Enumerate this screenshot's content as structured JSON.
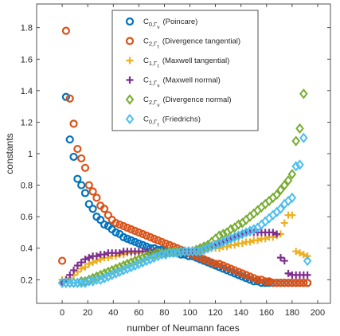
{
  "chart_data": {
    "type": "scatter",
    "xlabel": "number of Neumann faces",
    "ylabel": "constants",
    "xlim": [
      -20,
      210
    ],
    "ylim": [
      0.05,
      1.95
    ],
    "xticks": [
      "0",
      "20",
      "40",
      "60",
      "80",
      "100",
      "120",
      "140",
      "160",
      "180",
      "200"
    ],
    "yticks": [
      "0.2",
      "0.4",
      "0.6",
      "0.8",
      "1",
      "1.2",
      "1.4",
      "1.6",
      "1.8"
    ],
    "grid": false,
    "legend_position": "top-center",
    "series": [
      {
        "label_main": "C",
        "label_sub": "0,Γ",
        "label_subsub": "ν",
        "label_text": "(Poincare)",
        "marker": "circle",
        "color": "#0072bd",
        "x": [
          3,
          6,
          9,
          12,
          15,
          18,
          21,
          24,
          27,
          30,
          33,
          36,
          39,
          42,
          45,
          48,
          51,
          54,
          57,
          60,
          63,
          66,
          69,
          72,
          75,
          78,
          81,
          84,
          87,
          90,
          93,
          96,
          99,
          102,
          105,
          108,
          111,
          114,
          117,
          120,
          123,
          126,
          129,
          132,
          135,
          138,
          141,
          144,
          147,
          150,
          153,
          156,
          159,
          162,
          165,
          168,
          171,
          174,
          177,
          180,
          183,
          186,
          189,
          192
        ],
        "y": [
          1.36,
          1.09,
          0.98,
          0.84,
          0.8,
          0.75,
          0.68,
          0.65,
          0.6,
          0.58,
          0.55,
          0.54,
          0.52,
          0.5,
          0.49,
          0.47,
          0.46,
          0.45,
          0.44,
          0.43,
          0.42,
          0.41,
          0.4,
          0.4,
          0.39,
          0.39,
          0.38,
          0.37,
          0.37,
          0.37,
          0.36,
          0.36,
          0.35,
          0.35,
          0.34,
          0.33,
          0.32,
          0.31,
          0.3,
          0.29,
          0.28,
          0.27,
          0.26,
          0.25,
          0.24,
          0.23,
          0.22,
          0.21,
          0.2,
          0.19,
          0.19,
          0.18,
          0.18,
          0.18,
          0.18,
          0.18,
          0.18,
          0.18,
          0.18,
          0.18,
          0.18,
          0.18,
          0.18,
          0.18
        ]
      },
      {
        "label_main": "C",
        "label_sub": "2,Γ",
        "label_subsub": "τ",
        "label_text": "(Divergence tangential)",
        "marker": "circle",
        "color": "#d95319",
        "x": [
          0,
          3,
          6,
          9,
          12,
          15,
          18,
          21,
          24,
          27,
          30,
          33,
          36,
          39,
          42,
          45,
          48,
          51,
          54,
          57,
          60,
          63,
          66,
          69,
          72,
          75,
          78,
          81,
          84,
          87,
          90,
          93,
          96,
          99,
          102,
          105,
          108,
          111,
          114,
          117,
          120,
          123,
          126,
          129,
          132,
          135,
          138,
          141,
          144,
          147,
          150,
          153,
          156,
          159,
          162,
          165,
          168,
          171,
          174,
          177,
          180,
          183,
          186,
          189,
          192
        ],
        "y": [
          0.32,
          1.78,
          1.35,
          1.19,
          1.03,
          0.97,
          0.91,
          0.8,
          0.76,
          0.72,
          0.67,
          0.65,
          0.61,
          0.58,
          0.56,
          0.55,
          0.54,
          0.53,
          0.52,
          0.51,
          0.5,
          0.49,
          0.48,
          0.47,
          0.46,
          0.45,
          0.44,
          0.43,
          0.42,
          0.41,
          0.4,
          0.39,
          0.38,
          0.37,
          0.36,
          0.35,
          0.34,
          0.33,
          0.32,
          0.31,
          0.3,
          0.3,
          0.29,
          0.28,
          0.27,
          0.26,
          0.25,
          0.24,
          0.23,
          0.22,
          0.21,
          0.2,
          0.2,
          0.19,
          0.19,
          0.18,
          0.18,
          0.18,
          0.18,
          0.18,
          0.18,
          0.18,
          0.18,
          0.18,
          0.18
        ]
      },
      {
        "label_main": "C",
        "label_sub": "1,Γ",
        "label_subsub": "τ",
        "label_text": "(Maxwell tangential)",
        "marker": "plus",
        "color": "#edb120",
        "x": [
          0,
          3,
          6,
          9,
          12,
          15,
          18,
          21,
          24,
          27,
          30,
          33,
          36,
          39,
          42,
          45,
          48,
          51,
          54,
          57,
          60,
          63,
          66,
          69,
          72,
          75,
          78,
          81,
          84,
          87,
          90,
          93,
          96,
          99,
          102,
          105,
          108,
          111,
          114,
          117,
          120,
          123,
          126,
          129,
          132,
          135,
          138,
          141,
          144,
          147,
          150,
          153,
          156,
          159,
          162,
          165,
          168,
          171,
          174,
          177,
          180,
          183,
          186,
          189,
          192
        ],
        "y": [
          0.2,
          0.2,
          0.21,
          0.23,
          0.25,
          0.27,
          0.28,
          0.3,
          0.31,
          0.32,
          0.33,
          0.34,
          0.34,
          0.35,
          0.35,
          0.36,
          0.36,
          0.37,
          0.37,
          0.37,
          0.37,
          0.38,
          0.38,
          0.38,
          0.38,
          0.38,
          0.38,
          0.38,
          0.38,
          0.38,
          0.38,
          0.38,
          0.38,
          0.38,
          0.39,
          0.39,
          0.39,
          0.39,
          0.4,
          0.4,
          0.4,
          0.4,
          0.41,
          0.41,
          0.42,
          0.42,
          0.43,
          0.43,
          0.44,
          0.44,
          0.45,
          0.45,
          0.46,
          0.46,
          0.47,
          0.47,
          0.48,
          0.49,
          0.56,
          0.61,
          0.61,
          0.38,
          0.37,
          0.36,
          0.35
        ]
      },
      {
        "label_main": "C",
        "label_sub": "1,Γ",
        "label_subsub": "ν",
        "label_text": "(Maxwell normal)",
        "marker": "plus",
        "color": "#7e2f8e",
        "x": [
          0,
          3,
          6,
          9,
          12,
          15,
          18,
          21,
          24,
          27,
          30,
          33,
          36,
          39,
          42,
          45,
          48,
          51,
          54,
          57,
          60,
          63,
          66,
          69,
          72,
          75,
          78,
          81,
          84,
          87,
          90,
          93,
          96,
          99,
          102,
          105,
          108,
          111,
          114,
          117,
          120,
          123,
          126,
          129,
          132,
          135,
          138,
          141,
          144,
          147,
          150,
          153,
          156,
          159,
          162,
          165,
          168,
          171,
          174,
          177,
          180,
          183,
          186,
          189,
          192
        ],
        "y": [
          0.18,
          0.2,
          0.23,
          0.26,
          0.29,
          0.31,
          0.33,
          0.34,
          0.35,
          0.35,
          0.36,
          0.36,
          0.37,
          0.37,
          0.37,
          0.37,
          0.38,
          0.38,
          0.38,
          0.38,
          0.38,
          0.38,
          0.38,
          0.38,
          0.38,
          0.38,
          0.38,
          0.38,
          0.38,
          0.38,
          0.38,
          0.38,
          0.38,
          0.38,
          0.38,
          0.38,
          0.39,
          0.4,
          0.41,
          0.42,
          0.42,
          0.43,
          0.44,
          0.45,
          0.46,
          0.47,
          0.48,
          0.49,
          0.5,
          0.5,
          0.5,
          0.5,
          0.5,
          0.5,
          0.5,
          0.5,
          0.49,
          0.34,
          0.32,
          0.24,
          0.23,
          0.23,
          0.23,
          0.23,
          0.23
        ]
      },
      {
        "label_main": "C",
        "label_sub": "2,Γ",
        "label_subsub": "ν",
        "label_text": "(Divergence normal)",
        "marker": "diamond",
        "color": "#77ac30",
        "x": [
          0,
          3,
          6,
          9,
          12,
          15,
          18,
          21,
          24,
          27,
          30,
          33,
          36,
          39,
          42,
          45,
          48,
          51,
          54,
          57,
          60,
          63,
          66,
          69,
          72,
          75,
          78,
          81,
          84,
          87,
          90,
          93,
          96,
          99,
          102,
          105,
          108,
          111,
          114,
          117,
          120,
          123,
          126,
          129,
          132,
          135,
          138,
          141,
          144,
          147,
          150,
          153,
          156,
          159,
          162,
          165,
          168,
          171,
          174,
          177,
          180,
          183,
          186,
          189
        ],
        "y": [
          0.18,
          0.18,
          0.18,
          0.18,
          0.18,
          0.19,
          0.19,
          0.2,
          0.21,
          0.22,
          0.23,
          0.24,
          0.25,
          0.26,
          0.27,
          0.28,
          0.29,
          0.3,
          0.31,
          0.32,
          0.33,
          0.34,
          0.35,
          0.36,
          0.36,
          0.37,
          0.37,
          0.37,
          0.38,
          0.38,
          0.38,
          0.38,
          0.38,
          0.38,
          0.38,
          0.39,
          0.4,
          0.41,
          0.42,
          0.44,
          0.46,
          0.48,
          0.49,
          0.5,
          0.52,
          0.53,
          0.55,
          0.56,
          0.58,
          0.6,
          0.62,
          0.64,
          0.66,
          0.68,
          0.7,
          0.72,
          0.74,
          0.77,
          0.8,
          0.83,
          0.87,
          1.08,
          1.16,
          1.38
        ]
      },
      {
        "label_main": "C",
        "label_sub": "0,Γ",
        "label_subsub": "τ",
        "label_text": "(Friedrichs)",
        "marker": "diamond",
        "color": "#4dbeee",
        "x": [
          0,
          3,
          6,
          9,
          12,
          15,
          18,
          21,
          24,
          27,
          30,
          33,
          36,
          39,
          42,
          45,
          48,
          51,
          54,
          57,
          60,
          63,
          66,
          69,
          72,
          75,
          78,
          81,
          84,
          87,
          90,
          93,
          96,
          99,
          102,
          105,
          108,
          111,
          114,
          117,
          120,
          123,
          126,
          129,
          132,
          135,
          138,
          141,
          144,
          147,
          150,
          153,
          156,
          159,
          162,
          165,
          168,
          171,
          174,
          177,
          180,
          183,
          186,
          189,
          192
        ],
        "y": [
          0.18,
          0.18,
          0.18,
          0.18,
          0.18,
          0.18,
          0.18,
          0.19,
          0.19,
          0.2,
          0.2,
          0.21,
          0.22,
          0.23,
          0.24,
          0.25,
          0.26,
          0.27,
          0.28,
          0.29,
          0.3,
          0.31,
          0.32,
          0.33,
          0.34,
          0.35,
          0.36,
          0.36,
          0.37,
          0.37,
          0.37,
          0.38,
          0.38,
          0.38,
          0.38,
          0.38,
          0.38,
          0.39,
          0.4,
          0.41,
          0.42,
          0.43,
          0.44,
          0.45,
          0.46,
          0.47,
          0.48,
          0.49,
          0.5,
          0.51,
          0.52,
          0.53,
          0.55,
          0.57,
          0.59,
          0.61,
          0.63,
          0.65,
          0.68,
          0.7,
          0.72,
          0.92,
          0.93,
          1.1,
          0.32
        ]
      }
    ]
  }
}
